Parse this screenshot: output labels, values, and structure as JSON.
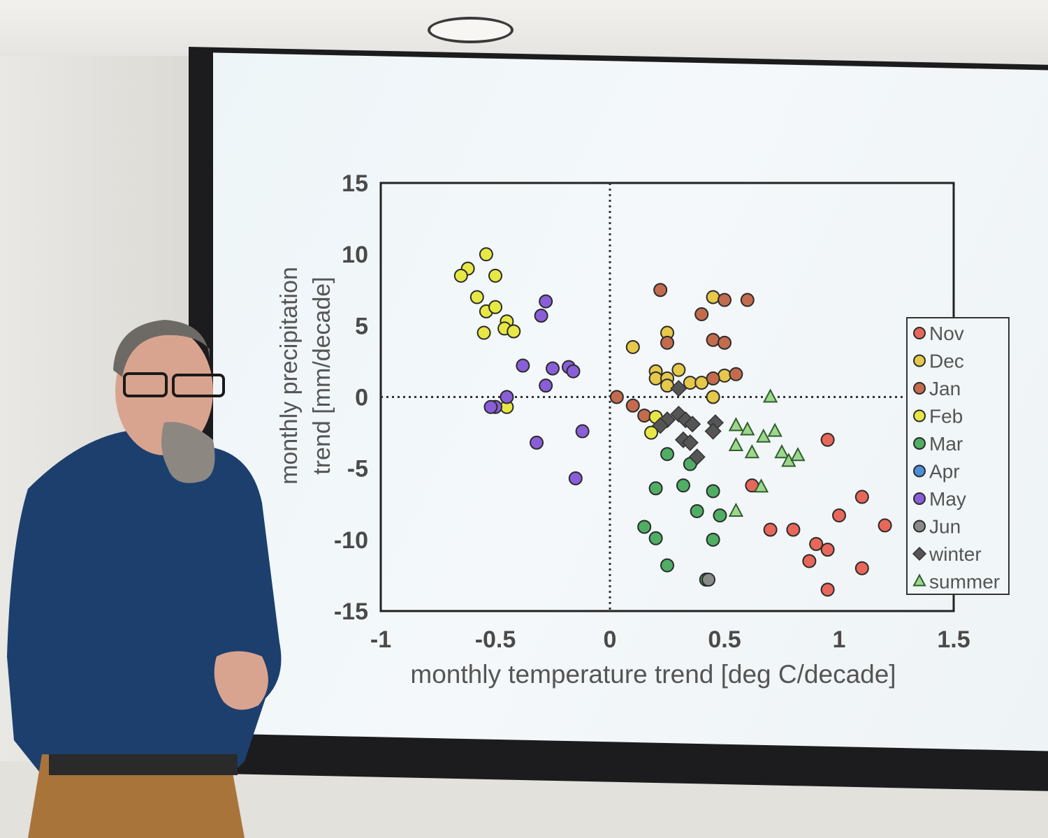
{
  "chart_data": {
    "type": "scatter",
    "xlabel": "monthly temperature trend [deg C/decade]",
    "ylabel_line1": "monthly precipitation",
    "ylabel_line2": "trend [mm/decade]",
    "xlim": [
      -1,
      1.5
    ],
    "ylim": [
      -15,
      15
    ],
    "x_ticks": [
      "-1",
      "-0.5",
      "0",
      "0.5",
      "1",
      "1.5"
    ],
    "y_ticks": [
      "15",
      "10",
      "5",
      "0",
      "-5",
      "-10",
      "-15"
    ],
    "legend_position": "right",
    "legend": [
      {
        "label": "Nov",
        "marker": "circle",
        "color": "#e8675a"
      },
      {
        "label": "Dec",
        "marker": "circle",
        "color": "#e6c84a"
      },
      {
        "label": "Jan",
        "marker": "circle",
        "color": "#c46b4e"
      },
      {
        "label": "Feb",
        "marker": "circle",
        "color": "#e8e845"
      },
      {
        "label": "Mar",
        "marker": "circle",
        "color": "#4fae64"
      },
      {
        "label": "Apr",
        "marker": "circle",
        "color": "#4a8fd8"
      },
      {
        "label": "May",
        "marker": "circle",
        "color": "#8a5ed8"
      },
      {
        "label": "Jun",
        "marker": "circle",
        "color": "#8a8a8a"
      },
      {
        "label": "winter",
        "marker": "diamond",
        "color": "#555555"
      },
      {
        "label": "summer",
        "marker": "triangle",
        "color": "#9ed68c"
      }
    ],
    "series": [
      {
        "name": "Nov",
        "points": [
          [
            0.95,
            -3
          ],
          [
            1.1,
            -7
          ],
          [
            1.0,
            -8.3
          ],
          [
            1.2,
            -9
          ],
          [
            0.7,
            -9.3
          ],
          [
            0.8,
            -9.3
          ],
          [
            0.9,
            -10.3
          ],
          [
            0.95,
            -10.7
          ],
          [
            0.87,
            -11.5
          ],
          [
            1.1,
            -12
          ],
          [
            0.95,
            -13.5
          ],
          [
            0.62,
            -6.2
          ]
        ]
      },
      {
        "name": "Dec",
        "points": [
          [
            0.25,
            4.5
          ],
          [
            0.1,
            3.5
          ],
          [
            0.45,
            7
          ],
          [
            0.2,
            1.8
          ],
          [
            0.3,
            1.9
          ],
          [
            0.2,
            1.3
          ],
          [
            0.25,
            1.3
          ],
          [
            0.35,
            1
          ],
          [
            0.4,
            1
          ],
          [
            0.5,
            1.5
          ],
          [
            0.45,
            0
          ],
          [
            0.25,
            0.8
          ]
        ]
      },
      {
        "name": "Jan",
        "points": [
          [
            0.22,
            7.5
          ],
          [
            0.5,
            6.8
          ],
          [
            0.6,
            6.8
          ],
          [
            0.4,
            5.8
          ],
          [
            0.25,
            3.8
          ],
          [
            0.45,
            4
          ],
          [
            0.5,
            3.8
          ],
          [
            0.55,
            1.6
          ],
          [
            0.45,
            1.3
          ],
          [
            0.03,
            0
          ],
          [
            0.1,
            -0.6
          ],
          [
            0.15,
            -1.3
          ]
        ]
      },
      {
        "name": "Feb",
        "points": [
          [
            -0.62,
            9
          ],
          [
            -0.65,
            8.5
          ],
          [
            -0.54,
            10
          ],
          [
            -0.5,
            8.5
          ],
          [
            -0.58,
            7
          ],
          [
            -0.54,
            6
          ],
          [
            -0.5,
            6.3
          ],
          [
            -0.45,
            5.3
          ],
          [
            -0.46,
            4.8
          ],
          [
            -0.42,
            4.6
          ],
          [
            -0.55,
            4.5
          ],
          [
            -0.45,
            -0.7
          ],
          [
            0.2,
            -1.4
          ],
          [
            0.18,
            -2.5
          ]
        ]
      },
      {
        "name": "Mar",
        "points": [
          [
            0.25,
            -4
          ],
          [
            0.35,
            -4.7
          ],
          [
            0.2,
            -6.4
          ],
          [
            0.32,
            -6.2
          ],
          [
            0.45,
            -6.6
          ],
          [
            0.38,
            -8
          ],
          [
            0.48,
            -8.3
          ],
          [
            0.15,
            -9.1
          ],
          [
            0.2,
            -9.9
          ],
          [
            0.45,
            -10
          ],
          [
            0.25,
            -11.8
          ],
          [
            0.42,
            -12.8
          ]
        ]
      },
      {
        "name": "May",
        "points": [
          [
            -0.28,
            6.7
          ],
          [
            -0.3,
            5.7
          ],
          [
            -0.38,
            2.2
          ],
          [
            -0.25,
            2
          ],
          [
            -0.18,
            2.1
          ],
          [
            -0.16,
            1.8
          ],
          [
            -0.28,
            0.8
          ],
          [
            -0.45,
            0
          ],
          [
            -0.5,
            -0.7
          ],
          [
            -0.52,
            -0.7
          ],
          [
            -0.12,
            -2.4
          ],
          [
            -0.32,
            -3.2
          ],
          [
            -0.15,
            -5.7
          ]
        ]
      },
      {
        "name": "Jun",
        "points": [
          [
            0.43,
            -12.8
          ]
        ]
      },
      {
        "name": "winter",
        "points": [
          [
            0.3,
            0.6
          ],
          [
            0.25,
            -1.6
          ],
          [
            0.3,
            -1.2
          ],
          [
            0.33,
            -1.6
          ],
          [
            0.36,
            -1.9
          ],
          [
            0.22,
            -2
          ],
          [
            0.46,
            -1.8
          ],
          [
            0.45,
            -2.4
          ],
          [
            0.32,
            -3
          ],
          [
            0.35,
            -3.2
          ],
          [
            0.38,
            -4.2
          ]
        ]
      },
      {
        "name": "summer",
        "points": [
          [
            0.7,
            0
          ],
          [
            0.55,
            -2
          ],
          [
            0.6,
            -2.3
          ],
          [
            0.72,
            -2.4
          ],
          [
            0.55,
            -3.4
          ],
          [
            0.67,
            -2.8
          ],
          [
            0.62,
            -3.9
          ],
          [
            0.75,
            -3.9
          ],
          [
            0.78,
            -4.5
          ],
          [
            0.82,
            -4.1
          ],
          [
            0.66,
            -6.3
          ],
          [
            0.55,
            -8
          ]
        ]
      }
    ]
  },
  "colors": {
    "screen": "#f0f5f8",
    "axis": "#1f1f1f",
    "tick_text": "#4a4a4a",
    "shirt": "#1c3f6e",
    "pants": "#b07a3a"
  }
}
